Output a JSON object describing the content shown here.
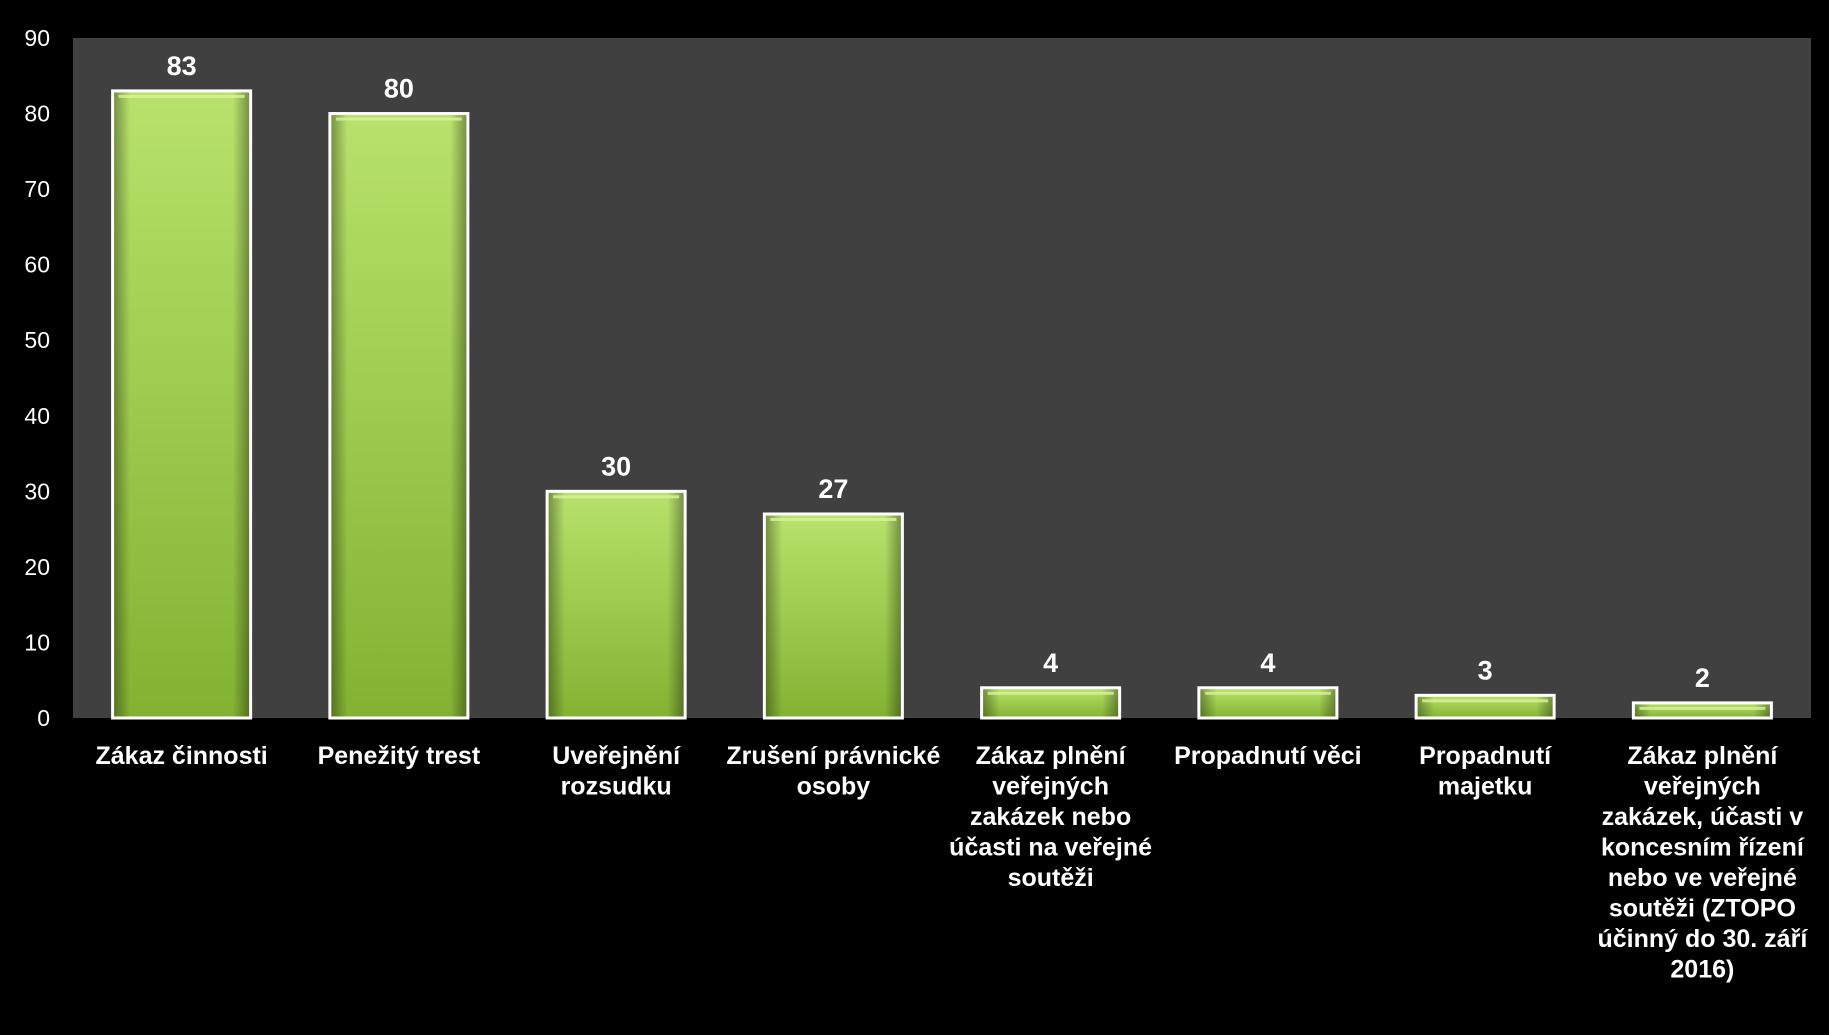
{
  "chart_data": {
    "type": "bar",
    "categories": [
      "Zákaz činnosti",
      "Penežitý trest",
      "Uveřejnění rozsudku",
      "Zrušení právnické osoby",
      "Zákaz plnění veřejných zakázek nebo účasti na veřejné soutěži",
      "Propadnutí věci",
      "Propadnutí majetku",
      "Zákaz plnění veřejných zakázek, účasti v koncesním řízení nebo ve veřejné soutěži (ZTOPO účinný do 30. září 2016)"
    ],
    "category_lines": [
      [
        "Zákaz činnosti"
      ],
      [
        "Penežitý trest"
      ],
      [
        "Uveřejnění",
        "rozsudku"
      ],
      [
        "Zrušení právnické",
        "osoby"
      ],
      [
        "Zákaz plnění",
        "veřejných",
        "zakázek nebo",
        "účasti na veřejné",
        "soutěži"
      ],
      [
        "Propadnutí věci"
      ],
      [
        "Propadnutí",
        "majetku"
      ],
      [
        "Zákaz plnění",
        "veřejných",
        "zakázek, účasti v",
        "koncesním řízení",
        "nebo ve veřejné",
        "soutěži (ZTOPO",
        "účinný do 30. září",
        "2016)"
      ]
    ],
    "values": [
      83,
      80,
      30,
      27,
      4,
      4,
      3,
      2
    ],
    "ylim": [
      0,
      90
    ],
    "yticks": [
      0,
      10,
      20,
      30,
      40,
      50,
      60,
      70,
      80,
      90
    ],
    "grid": false,
    "legend": "none",
    "title": "",
    "xlabel": "",
    "ylabel": ""
  },
  "colors": {
    "background": "#000000",
    "plot_area": "#404040",
    "bar_light": "#b5e06a",
    "bar_dark": "#7fae2e",
    "bar_border": "#ffffff",
    "text": "#ffffff"
  }
}
